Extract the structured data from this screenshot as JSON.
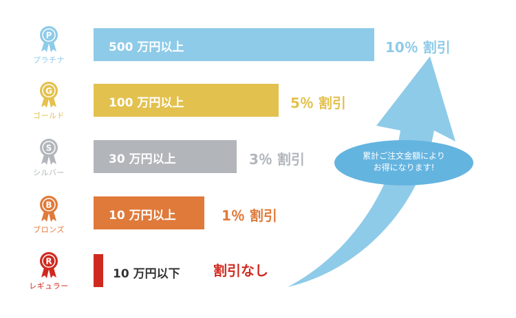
{
  "colors": {
    "platinum": "#8ecbe8",
    "gold": "#e3c14e",
    "silver": "#b2b6bb",
    "bronze": "#e07a3a",
    "regular": "#cf2a20",
    "arrow": "#8ecbe8",
    "bubble": "#64b4e0"
  },
  "tiers": [
    {
      "id": "platinum",
      "badge_letter": "P",
      "name": "プラチナ",
      "threshold": "500 万円以上",
      "discount": "10％ 割引"
    },
    {
      "id": "gold",
      "badge_letter": "G",
      "name": "ゴールド",
      "threshold": "100 万円以上",
      "discount": "5％ 割引"
    },
    {
      "id": "silver",
      "badge_letter": "S",
      "name": "シルバー",
      "threshold": "30 万円以上",
      "discount": "3％ 割引"
    },
    {
      "id": "bronze",
      "badge_letter": "B",
      "name": "ブロンズ",
      "threshold": "10 万円以上",
      "discount": "1％ 割引"
    },
    {
      "id": "regular",
      "badge_letter": "R",
      "name": "レギュラー",
      "threshold": "10 万円以下",
      "discount": "割引なし"
    }
  ],
  "bubble": {
    "line1": "累計ご注文金額により",
    "line2": "お得になります!"
  },
  "icons": {
    "badge": "ribbon-medal-icon",
    "arrow": "upward-curved-arrow"
  }
}
